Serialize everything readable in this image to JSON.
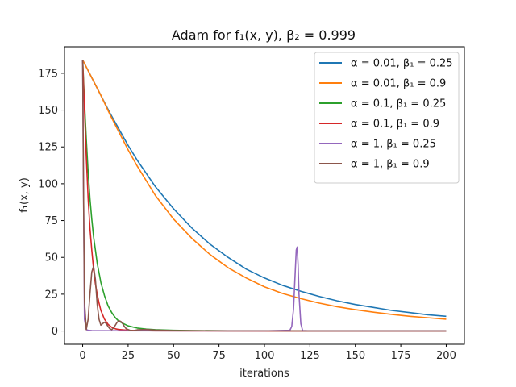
{
  "chart_data": {
    "type": "line",
    "title": "Adam for f₁(x, y), β₂ = 0.999",
    "xlabel": "iterations",
    "ylabel": "f₁(x, y)",
    "xlim": [
      -10,
      210
    ],
    "ylim": [
      -9,
      193
    ],
    "xticks": [
      0,
      25,
      50,
      75,
      100,
      125,
      150,
      175,
      200
    ],
    "yticks": [
      0,
      25,
      50,
      75,
      100,
      125,
      150,
      175
    ],
    "grid": false,
    "legend_position": "top-right",
    "series": [
      {
        "name": "α = 0.01, β₁ = 0.25",
        "color": "#1f77b4",
        "x": [
          0,
          5,
          10,
          15,
          20,
          25,
          30,
          40,
          50,
          60,
          70,
          80,
          90,
          100,
          110,
          120,
          130,
          140,
          150,
          160,
          170,
          180,
          190,
          200
        ],
        "y": [
          184,
          172,
          160,
          148,
          137,
          126,
          116,
          98,
          83,
          70,
          59,
          50,
          42,
          36,
          31,
          27,
          23.5,
          20.5,
          18,
          16,
          14,
          12.5,
          11,
          10
        ]
      },
      {
        "name": "α = 0.01, β₁ = 0.9",
        "color": "#ff7f0e",
        "x": [
          0,
          5,
          10,
          15,
          20,
          25,
          30,
          40,
          50,
          60,
          70,
          80,
          90,
          100,
          110,
          120,
          130,
          140,
          150,
          160,
          170,
          180,
          190,
          200
        ],
        "y": [
          184,
          172,
          160,
          147,
          135,
          123,
          112,
          92,
          76,
          63,
          52,
          43,
          36,
          30,
          25.5,
          22,
          19,
          16.5,
          14.5,
          12.8,
          11.3,
          10,
          9,
          8
        ]
      },
      {
        "name": "α = 0.1, β₁ = 0.25",
        "color": "#2ca02c",
        "x": [
          0,
          1,
          2,
          3,
          4,
          5,
          6,
          8,
          10,
          12,
          14,
          16,
          18,
          20,
          25,
          30,
          35,
          40,
          50,
          60,
          80,
          100,
          150,
          200
        ],
        "y": [
          184,
          155,
          130,
          108,
          90,
          76,
          64,
          46,
          33,
          24,
          17,
          12.5,
          9,
          6.5,
          3.5,
          2,
          1.3,
          0.9,
          0.5,
          0.3,
          0.15,
          0.1,
          0.05,
          0.02
        ]
      },
      {
        "name": "α = 0.1, β₁ = 0.9",
        "color": "#d62728",
        "x": [
          0,
          1,
          2,
          3,
          4,
          5,
          6,
          7,
          8,
          9,
          10,
          12,
          14,
          16,
          18,
          20,
          25,
          30,
          40,
          60,
          100,
          150,
          200
        ],
        "y": [
          184,
          150,
          118,
          90,
          70,
          55,
          42,
          32,
          25,
          19,
          14,
          8,
          4.5,
          2.5,
          1.5,
          1,
          0.5,
          0.3,
          0.1,
          0.05,
          0.02,
          0.01,
          0.01
        ]
      },
      {
        "name": "α = 1, β₁ = 0.25",
        "color": "#9467bd",
        "x": [
          0,
          0.5,
          1,
          2,
          3,
          5,
          10,
          50,
          100,
          114,
          115,
          116,
          117,
          117.5,
          118,
          118.5,
          119,
          120,
          121,
          125,
          150,
          200
        ],
        "y": [
          184,
          90,
          8,
          1,
          0.5,
          0.3,
          0.2,
          0.1,
          0.1,
          0.5,
          3,
          15,
          42,
          55,
          57,
          45,
          25,
          5,
          0.3,
          0.1,
          0.1,
          0.1
        ]
      },
      {
        "name": "α = 1, β₁ = 0.9",
        "color": "#8c564b",
        "x": [
          0,
          0.5,
          1,
          2,
          3,
          4,
          5,
          6,
          7,
          8,
          9,
          10,
          11,
          12,
          13,
          14,
          15,
          16,
          17,
          18,
          19,
          20,
          21,
          22,
          23,
          24,
          26,
          28,
          30,
          35,
          40,
          50,
          60,
          80,
          100,
          150,
          200
        ],
        "y": [
          184,
          90,
          20,
          1,
          8,
          25,
          40,
          44,
          35,
          18,
          8,
          4,
          5,
          6,
          5,
          3,
          1.5,
          1,
          2,
          4,
          6,
          7,
          6.5,
          5,
          3,
          1.5,
          0.5,
          0.3,
          0.8,
          1,
          0.6,
          0.3,
          0.2,
          0.1,
          0.1,
          0.05,
          0.05
        ]
      }
    ]
  }
}
